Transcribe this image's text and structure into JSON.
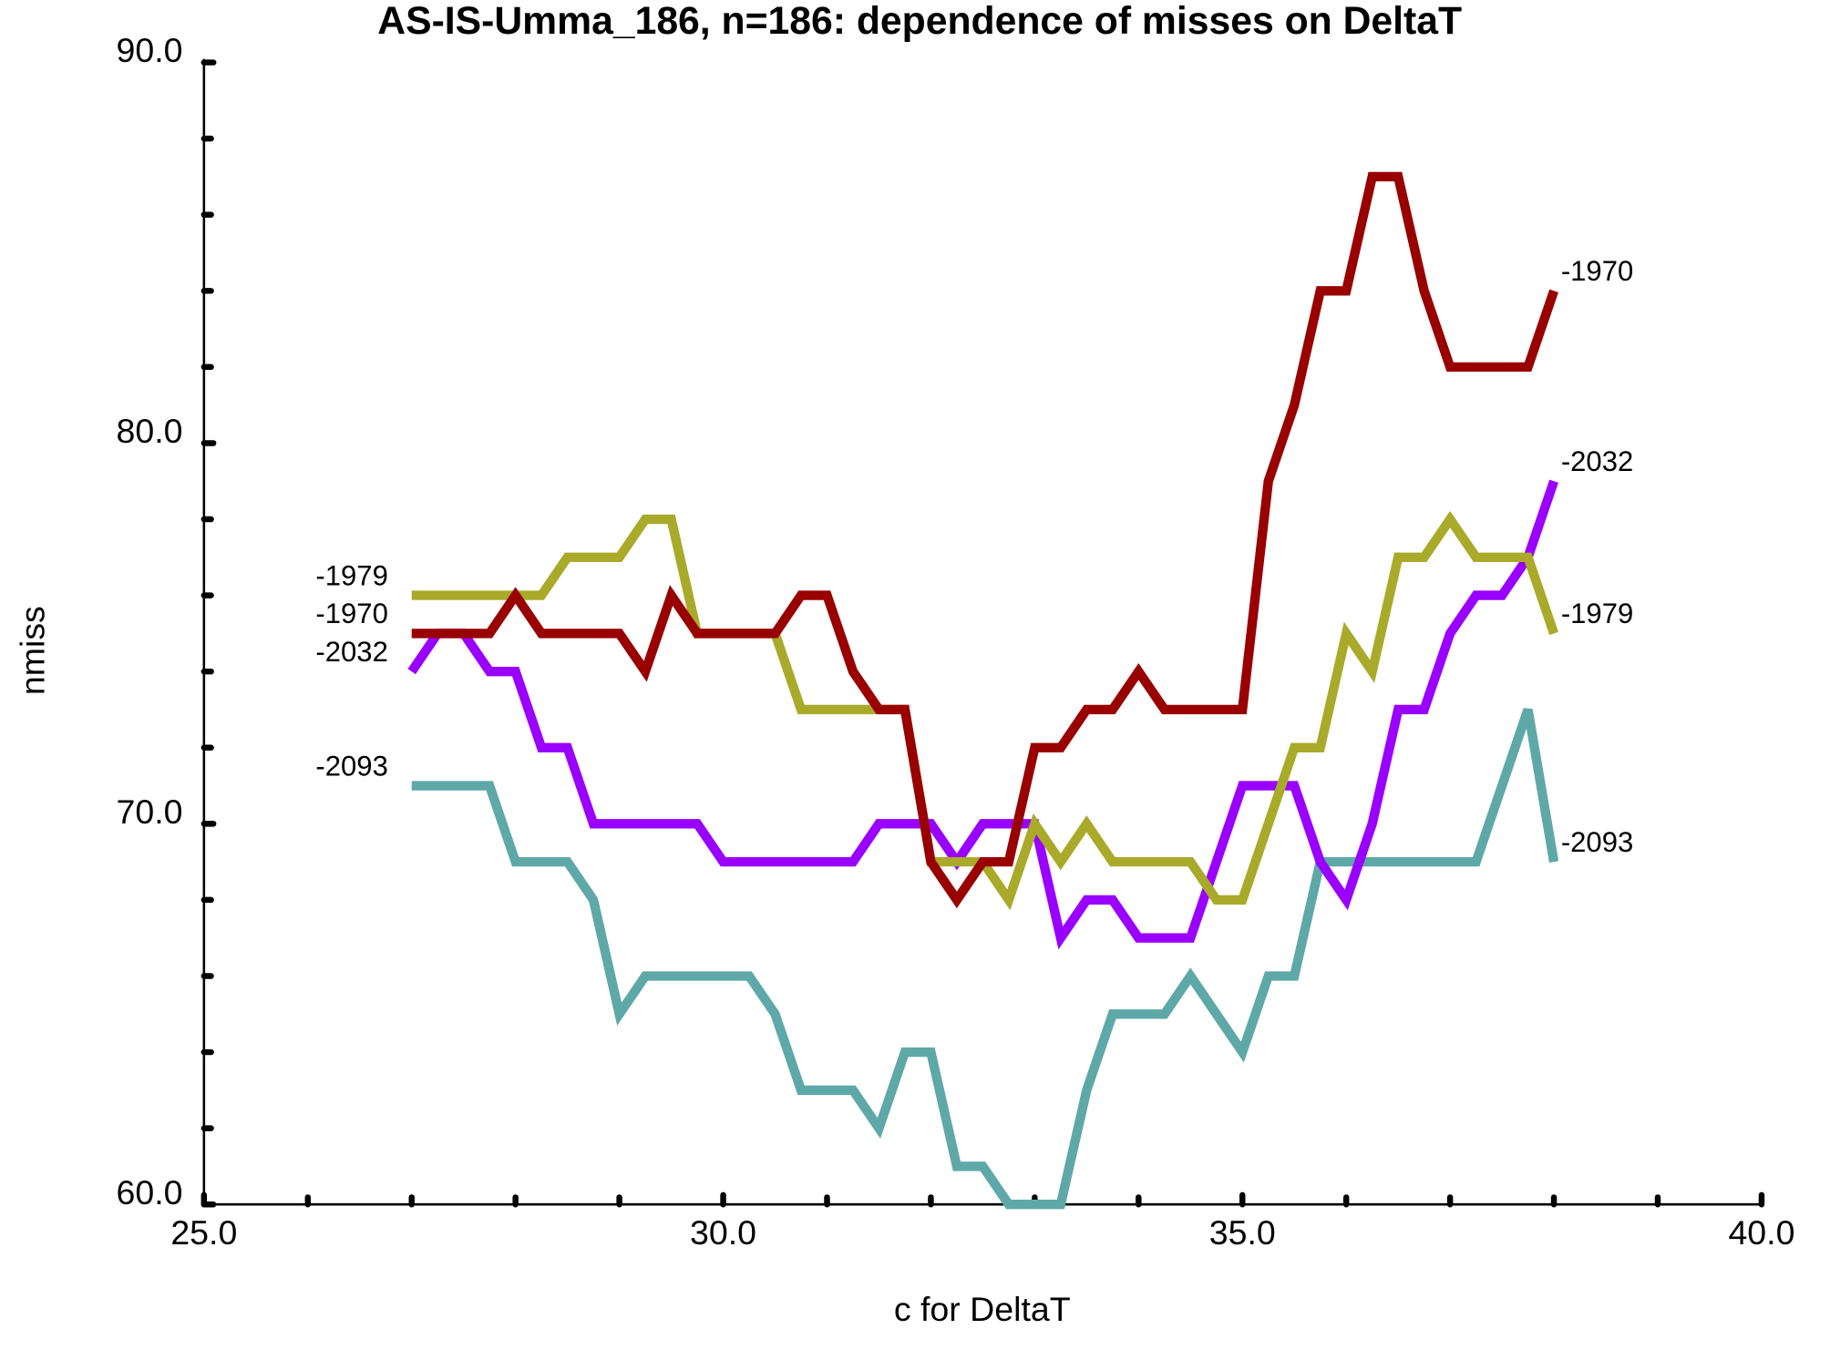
{
  "chart_data": {
    "type": "line",
    "title": "AS-IS-Umma_186, n=186: dependence of misses on DeltaT",
    "xlabel": "c for DeltaT",
    "ylabel": "nmiss",
    "x": [
      27,
      27.25,
      27.5,
      27.75,
      28,
      28.25,
      28.5,
      28.75,
      29,
      29.25,
      29.5,
      29.75,
      30,
      30.25,
      30.5,
      30.75,
      31,
      31.25,
      31.5,
      31.75,
      32,
      32.25,
      32.5,
      32.75,
      33,
      33.25,
      33.5,
      33.75,
      34,
      34.25,
      34.5,
      34.75,
      35,
      35.25,
      35.5,
      35.75,
      36,
      36.25,
      36.5,
      36.75,
      37,
      37.25,
      37.5,
      37.75,
      38
    ],
    "series": [
      {
        "name": "-2093",
        "color": "#5fa8a8",
        "values": [
          71,
          71,
          71,
          71,
          69,
          69,
          69,
          68,
          65,
          66,
          66,
          66,
          66,
          66,
          65,
          63,
          63,
          63,
          62,
          64,
          64,
          61,
          61,
          60,
          60,
          60,
          63,
          65,
          65,
          65,
          66,
          65,
          64,
          66,
          66,
          69,
          69,
          69,
          69,
          69,
          69,
          69,
          71,
          73,
          69
        ]
      },
      {
        "name": "-2032",
        "color": "#9900ff",
        "values": [
          74,
          75,
          75,
          74,
          74,
          72,
          72,
          70,
          70,
          70,
          70,
          70,
          69,
          69,
          69,
          69,
          69,
          69,
          70,
          70,
          70,
          69,
          70,
          70,
          70,
          67,
          68,
          68,
          67,
          67,
          67,
          69,
          71,
          71,
          71,
          69,
          68,
          70,
          73,
          73,
          75,
          76,
          76,
          77,
          79
        ]
      },
      {
        "name": "-1979",
        "color": "#aaaa2a",
        "values": [
          76,
          76,
          76,
          76,
          76,
          76,
          77,
          77,
          77,
          78,
          78,
          75,
          75,
          75,
          75,
          73,
          73,
          73,
          73,
          73,
          69,
          69,
          69,
          68,
          70,
          69,
          70,
          69,
          69,
          69,
          69,
          68,
          68,
          70,
          72,
          72,
          75,
          74,
          77,
          77,
          78,
          77,
          77,
          77,
          75
        ]
      },
      {
        "name": "-1970",
        "color": "#990000",
        "values": [
          75,
          75,
          75,
          75,
          76,
          75,
          75,
          75,
          75,
          74,
          76,
          75,
          75,
          75,
          75,
          76,
          76,
          74,
          73,
          73,
          69,
          68,
          69,
          69,
          72,
          72,
          73,
          73,
          74,
          73,
          73,
          73,
          73,
          79,
          81,
          84,
          84,
          87,
          87,
          84,
          82,
          82,
          82,
          82,
          84
        ]
      }
    ],
    "xlim": [
      25,
      40
    ],
    "xticks": [
      {
        "value": 25,
        "label": "25.0"
      },
      {
        "value": 30,
        "label": "30.0"
      },
      {
        "value": 35,
        "label": "35.0"
      },
      {
        "value": 40,
        "label": "40.0"
      }
    ],
    "xminor_ticks": [
      26,
      27,
      28,
      29,
      31,
      32,
      33,
      34,
      36,
      37,
      38,
      39
    ],
    "ylim": [
      60,
      90
    ],
    "yticks": [
      {
        "value": 60,
        "label": "60.0"
      },
      {
        "value": 70,
        "label": "70.0"
      },
      {
        "value": 80,
        "label": "80.0"
      },
      {
        "value": 90,
        "label": "90.0"
      }
    ],
    "yminor_ticks": [
      62,
      64,
      66,
      68,
      72,
      74,
      76,
      78,
      82,
      84,
      86,
      88
    ]
  }
}
